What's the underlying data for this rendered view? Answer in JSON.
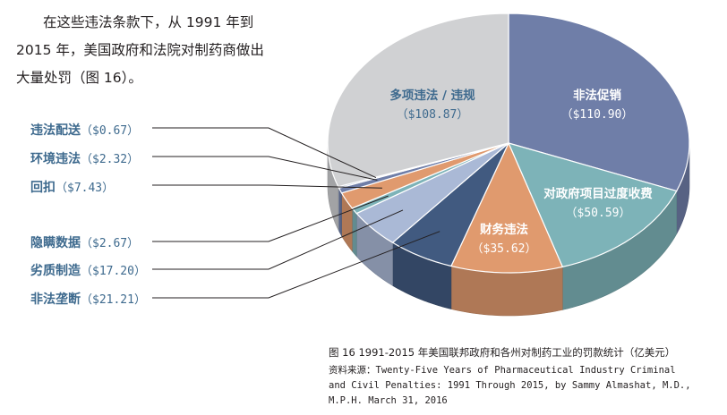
{
  "intro": {
    "line1": "在这些违法条款下，从 1991 年到",
    "line2": "2015 年，美国政府和法院对制药商做出",
    "line3": "大量处罚（图 16）。"
  },
  "chart_data": {
    "type": "pie",
    "title": "图 16 1991-2015 年美国联邦政府和各州对制药工业的罚款统计（亿美元）",
    "unit": "亿美元",
    "slices": [
      {
        "name": "非法促销",
        "value": 110.9,
        "value_label": "（$110.90）",
        "color": "#6f7ea8"
      },
      {
        "name": "对政府项目过度收费",
        "value": 50.59,
        "value_label": "（$50.59）",
        "color": "#7db3b8"
      },
      {
        "name": "财务违法",
        "value": 35.62,
        "value_label": "（$35.62）",
        "color": "#e09a6e"
      },
      {
        "name": "非法垄断",
        "value": 21.21,
        "value_label": "（$21.21）",
        "color": "#415a80"
      },
      {
        "name": "劣质制造",
        "value": 17.2,
        "value_label": "（$17.20）",
        "color": "#aab9d6"
      },
      {
        "name": "隐瞒数据",
        "value": 2.67,
        "value_label": "（$2.67）",
        "color": "#7db3b8"
      },
      {
        "name": "回扣",
        "value": 7.43,
        "value_label": "（$7.43）",
        "color": "#e09a6e"
      },
      {
        "name": "环境违法",
        "value": 2.32,
        "value_label": "（$2.32）",
        "color": "#6f7ea8"
      },
      {
        "name": "违法配送",
        "value": 0.67,
        "value_label": "（$0.67）",
        "color": "#aab9d6"
      },
      {
        "name": "多项违法 / 违规",
        "value": 108.87,
        "value_label": "（$108.87）",
        "color": "#d0d1d3"
      }
    ]
  },
  "callouts": [
    {
      "name": "违法配送",
      "value": "（$0.67）"
    },
    {
      "name": "环境违法",
      "value": "（$2.32）"
    },
    {
      "name": "回扣",
      "value": "（$7.43）"
    },
    {
      "name": "隐瞒数据",
      "value": "（$2.67）"
    },
    {
      "name": "劣质制造",
      "value": "（$17.20）"
    },
    {
      "name": "非法垄断",
      "value": "（$21.21）"
    }
  ],
  "caption": {
    "title": "图 16  1991-2015 年美国联邦政府和各州对制药工业的罚款统计（亿美元）",
    "source_line1": "资料来源：Twenty-Five Years of Pharmaceutical Industry Criminal",
    "source_line2": "and Civil Penalties: 1991 Through 2015, by Sammy Almashat, M.D.,",
    "source_line3": "M.P.H.  March 31, 2016"
  }
}
